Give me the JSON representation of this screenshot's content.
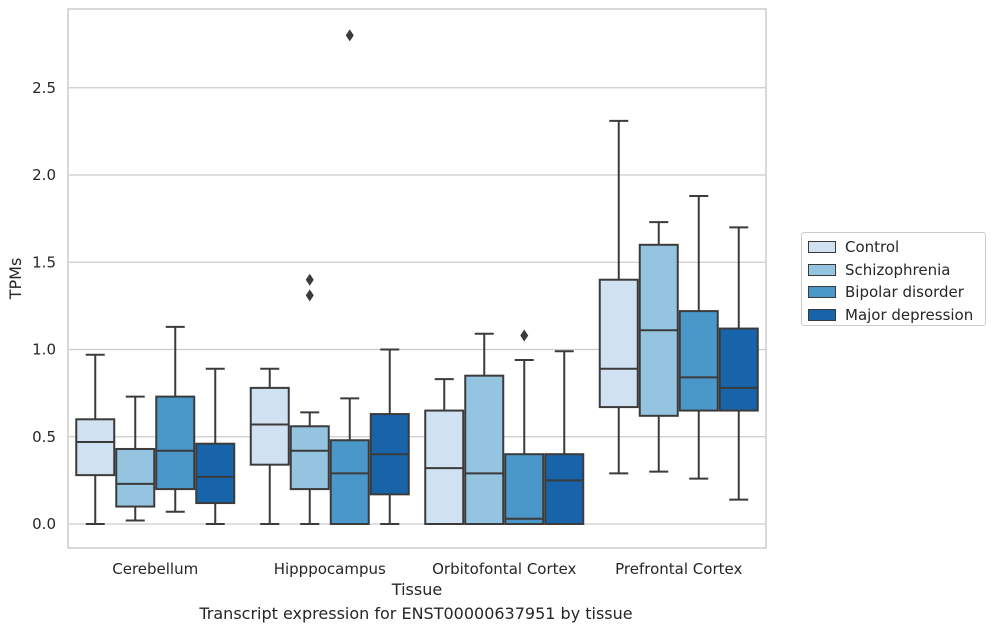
{
  "chart_data": {
    "type": "box",
    "title": "Transcript expression for ENST00000637951 by tissue",
    "xlabel": "Tissue",
    "ylabel": "TPMs",
    "ylim": [
      -0.14,
      2.95
    ],
    "yticks": [
      0.0,
      0.5,
      1.0,
      1.5,
      2.0,
      2.5
    ],
    "ytick_labels": [
      "0.0",
      "0.5",
      "1.0",
      "1.5",
      "2.0",
      "2.5"
    ],
    "grid": true,
    "legend_position": "right",
    "categories": [
      "Cerebellum",
      "Hipppocampus",
      "Orbitofontal Cortex",
      "Prefrontal Cortex"
    ],
    "series": [
      {
        "name": "Control",
        "color": "#d0e1f2",
        "boxes": [
          {
            "whislo": 0.0,
            "q1": 0.28,
            "med": 0.47,
            "q3": 0.6,
            "whishi": 0.97,
            "fliers": []
          },
          {
            "whislo": 0.0,
            "q1": 0.34,
            "med": 0.57,
            "q3": 0.78,
            "whishi": 0.89,
            "fliers": []
          },
          {
            "whislo": 0.0,
            "q1": 0.0,
            "med": 0.32,
            "q3": 0.65,
            "whishi": 0.83,
            "fliers": []
          },
          {
            "whislo": 0.29,
            "q1": 0.67,
            "med": 0.89,
            "q3": 1.4,
            "whishi": 2.31,
            "fliers": []
          }
        ]
      },
      {
        "name": "Schizophrenia",
        "color": "#94c4df",
        "boxes": [
          {
            "whislo": 0.02,
            "q1": 0.1,
            "med": 0.23,
            "q3": 0.43,
            "whishi": 0.73,
            "fliers": []
          },
          {
            "whislo": 0.0,
            "q1": 0.2,
            "med": 0.42,
            "q3": 0.56,
            "whishi": 0.64,
            "fliers": [
              1.4,
              1.31
            ]
          },
          {
            "whislo": 0.0,
            "q1": 0.0,
            "med": 0.29,
            "q3": 0.85,
            "whishi": 1.09,
            "fliers": []
          },
          {
            "whislo": 0.3,
            "q1": 0.62,
            "med": 1.11,
            "q3": 1.6,
            "whishi": 1.73,
            "fliers": []
          }
        ]
      },
      {
        "name": "Bipolar disorder",
        "color": "#4a98c9",
        "boxes": [
          {
            "whislo": 0.07,
            "q1": 0.2,
            "med": 0.42,
            "q3": 0.73,
            "whishi": 1.13,
            "fliers": []
          },
          {
            "whislo": 0.0,
            "q1": 0.0,
            "med": 0.29,
            "q3": 0.48,
            "whishi": 0.72,
            "fliers": [
              2.8
            ]
          },
          {
            "whislo": 0.0,
            "q1": 0.0,
            "med": 0.03,
            "q3": 0.4,
            "whishi": 0.94,
            "fliers": [
              1.08
            ]
          },
          {
            "whislo": 0.26,
            "q1": 0.65,
            "med": 0.84,
            "q3": 1.22,
            "whishi": 1.88,
            "fliers": []
          }
        ]
      },
      {
        "name": "Major depression",
        "color": "#1764ab",
        "boxes": [
          {
            "whislo": 0.0,
            "q1": 0.12,
            "med": 0.27,
            "q3": 0.46,
            "whishi": 0.89,
            "fliers": []
          },
          {
            "whislo": 0.0,
            "q1": 0.17,
            "med": 0.4,
            "q3": 0.63,
            "whishi": 1.0,
            "fliers": []
          },
          {
            "whislo": 0.0,
            "q1": 0.0,
            "med": 0.25,
            "q3": 0.4,
            "whishi": 0.99,
            "fliers": []
          },
          {
            "whislo": 0.14,
            "q1": 0.65,
            "med": 0.78,
            "q3": 1.12,
            "whishi": 1.7,
            "fliers": []
          }
        ]
      }
    ]
  }
}
